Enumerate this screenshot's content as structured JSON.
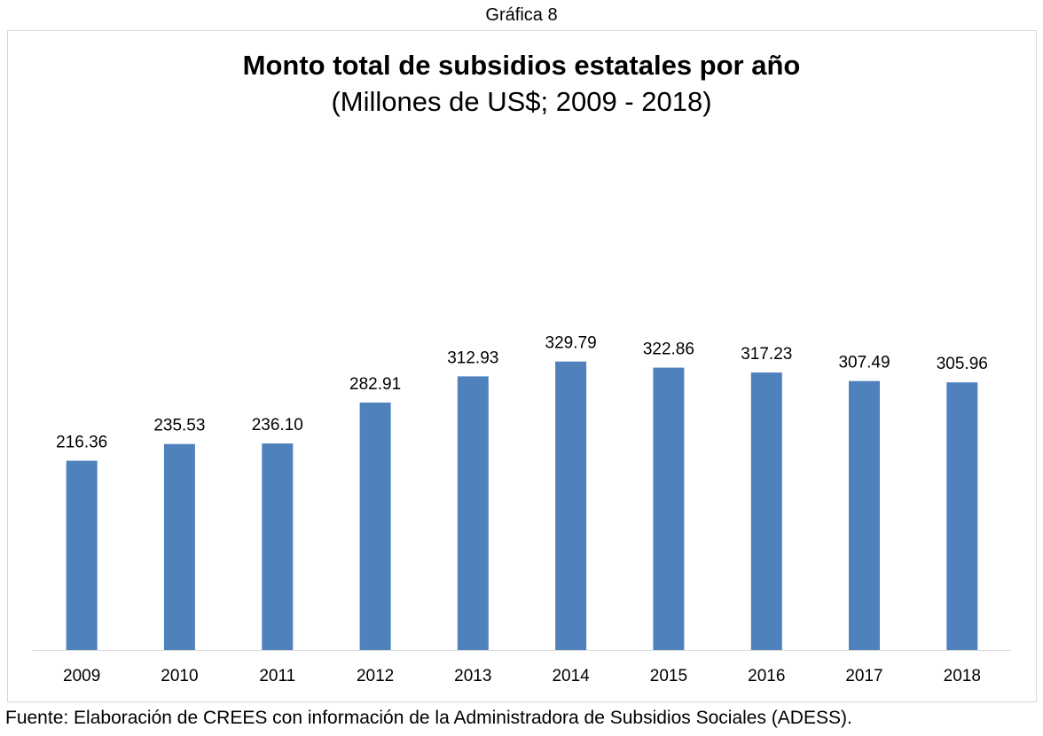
{
  "figure_label": "Gráfica 8",
  "chart_data": {
    "type": "bar",
    "title": "Monto total de subsidios estatales por año",
    "subtitle": "(Millones de US$; 2009 - 2018)",
    "categories": [
      "2009",
      "2010",
      "2011",
      "2012",
      "2013",
      "2014",
      "2015",
      "2016",
      "2017",
      "2018"
    ],
    "values": [
      216.36,
      235.53,
      236.1,
      282.91,
      312.93,
      329.79,
      322.86,
      317.23,
      307.49,
      305.96
    ],
    "value_labels": [
      "216.36",
      "235.53",
      "236.10",
      "282.91",
      "312.93",
      "329.79",
      "322.86",
      "317.23",
      "307.49",
      "305.96"
    ],
    "xlabel": "",
    "ylabel": "",
    "ylim": [
      0,
      350
    ],
    "grid": false,
    "legend": "none",
    "colors": {
      "bar": "#4f81bd",
      "axis": "#d9d9d9"
    }
  },
  "source": "Fuente: Elaboración de CREES con información de la Administradora de Subsidios Sociales (ADESS)."
}
